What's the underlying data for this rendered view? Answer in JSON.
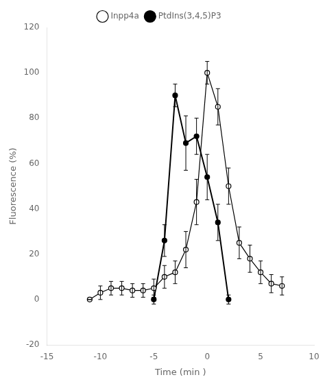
{
  "chart_data": {
    "type": "line",
    "xlabel": "Time (min )",
    "ylabel": "Fluorescence (%)",
    "xlim": [
      -15,
      10
    ],
    "xticks": [
      -15,
      -10,
      -5,
      0,
      5,
      10
    ],
    "ylim": [
      -20,
      120
    ],
    "yticks": [
      -20,
      0,
      20,
      40,
      60,
      80,
      100,
      120
    ],
    "grid": false,
    "legend": "top",
    "series": [
      {
        "name": "Inpp4a",
        "color": "#000000",
        "marker": "open_circle",
        "line_style": "solid",
        "x": [
          -11,
          -10,
          -9,
          -8,
          -7,
          -6,
          -5,
          -4,
          -3,
          -2,
          -1,
          0,
          1,
          2,
          3,
          4,
          5,
          6,
          7
        ],
        "values": [
          0,
          3,
          5,
          5,
          4,
          4,
          5,
          10,
          12,
          22,
          43,
          100,
          85,
          50,
          25,
          18,
          12,
          7,
          6
        ],
        "yerr": [
          0,
          3,
          3,
          3,
          3,
          3,
          4,
          5,
          5,
          8,
          10,
          5,
          8,
          8,
          7,
          6,
          5,
          4,
          4
        ]
      },
      {
        "name": "PtdIns(3,4,5)P3",
        "color": "#000000",
        "marker": "circle",
        "line_style": "solid",
        "x": [
          -5,
          -4,
          -3,
          -2,
          -1,
          0,
          1,
          2
        ],
        "values": [
          0,
          26,
          90,
          69,
          72,
          54,
          34,
          0
        ],
        "yerr": [
          2,
          7,
          5,
          12,
          8,
          10,
          8,
          2
        ]
      }
    ]
  }
}
